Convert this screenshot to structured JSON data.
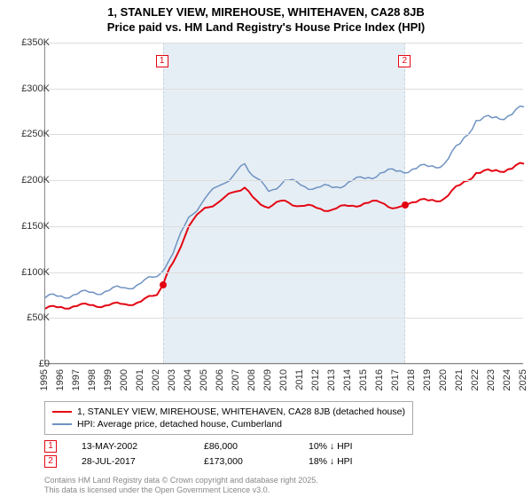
{
  "title_line1": "1, STANLEY VIEW, MIREHOUSE, WHITEHAVEN, CA28 8JB",
  "title_line2": "Price paid vs. HM Land Registry's House Price Index (HPI)",
  "chart": {
    "type": "line",
    "background_color": "#ffffff",
    "shade_color": "#e6eef5",
    "grid_color": "#dddddd",
    "axis_color": "#888888",
    "x_start_year": 1995,
    "x_end_year": 2025,
    "x_ticks": [
      1995,
      1996,
      1997,
      1998,
      1999,
      2000,
      2001,
      2002,
      2003,
      2004,
      2005,
      2006,
      2007,
      2008,
      2009,
      2010,
      2011,
      2012,
      2013,
      2014,
      2015,
      2016,
      2017,
      2018,
      2019,
      2020,
      2021,
      2022,
      2023,
      2024,
      2025
    ],
    "y_min": 0,
    "y_max": 350000,
    "y_ticks": [
      {
        "v": 0,
        "label": "£0"
      },
      {
        "v": 50000,
        "label": "£50K"
      },
      {
        "v": 100000,
        "label": "£100K"
      },
      {
        "v": 150000,
        "label": "£150K"
      },
      {
        "v": 200000,
        "label": "£200K"
      },
      {
        "v": 250000,
        "label": "£250K"
      },
      {
        "v": 300000,
        "label": "£300K"
      },
      {
        "v": 350000,
        "label": "£350K"
      }
    ],
    "shade_from_year": 2002.37,
    "shade_to_year": 2017.57,
    "series": [
      {
        "name": "1, STANLEY VIEW, MIREHOUSE, WHITEHAVEN, CA28 8JB (detached house)",
        "color": "#e30613",
        "width": 2,
        "data": [
          [
            1995,
            60000
          ],
          [
            1996,
            62000
          ],
          [
            1997,
            63000
          ],
          [
            1998,
            64000
          ],
          [
            1999,
            64000
          ],
          [
            2000,
            65000
          ],
          [
            2001,
            68000
          ],
          [
            2002,
            75000
          ],
          [
            2002.37,
            86000
          ],
          [
            2003,
            110000
          ],
          [
            2004,
            150000
          ],
          [
            2005,
            170000
          ],
          [
            2006,
            178000
          ],
          [
            2007,
            188000
          ],
          [
            2007.5,
            192000
          ],
          [
            2008,
            182000
          ],
          [
            2009,
            170000
          ],
          [
            2010,
            178000
          ],
          [
            2011,
            172000
          ],
          [
            2012,
            170000
          ],
          [
            2013,
            168000
          ],
          [
            2014,
            172000
          ],
          [
            2015,
            175000
          ],
          [
            2016,
            176000
          ],
          [
            2017,
            170000
          ],
          [
            2017.57,
            173000
          ],
          [
            2018,
            176000
          ],
          [
            2019,
            178000
          ],
          [
            2020,
            180000
          ],
          [
            2021,
            195000
          ],
          [
            2022,
            208000
          ],
          [
            2023,
            210000
          ],
          [
            2024,
            212000
          ],
          [
            2025,
            218000
          ]
        ]
      },
      {
        "name": "HPI: Average price, detached house, Cumberland",
        "color": "#6f93c2",
        "width": 1.5,
        "data": [
          [
            1995,
            72000
          ],
          [
            1996,
            74000
          ],
          [
            1997,
            76000
          ],
          [
            1998,
            78000
          ],
          [
            1999,
            80000
          ],
          [
            2000,
            83000
          ],
          [
            2001,
            88000
          ],
          [
            2002,
            95000
          ],
          [
            2003,
            120000
          ],
          [
            2004,
            160000
          ],
          [
            2005,
            180000
          ],
          [
            2006,
            195000
          ],
          [
            2007,
            210000
          ],
          [
            2007.5,
            218000
          ],
          [
            2008,
            205000
          ],
          [
            2009,
            188000
          ],
          [
            2010,
            200000
          ],
          [
            2011,
            195000
          ],
          [
            2012,
            192000
          ],
          [
            2013,
            192000
          ],
          [
            2014,
            198000
          ],
          [
            2015,
            202000
          ],
          [
            2016,
            208000
          ],
          [
            2017,
            210000
          ],
          [
            2018,
            212000
          ],
          [
            2019,
            215000
          ],
          [
            2020,
            218000
          ],
          [
            2021,
            240000
          ],
          [
            2022,
            265000
          ],
          [
            2023,
            268000
          ],
          [
            2024,
            270000
          ],
          [
            2025,
            280000
          ]
        ]
      }
    ],
    "markers": [
      {
        "num": "1",
        "year": 2002.37,
        "color": "#e30613"
      },
      {
        "num": "2",
        "year": 2017.57,
        "color": "#e30613"
      }
    ],
    "sale_points": [
      {
        "year": 2002.37,
        "value": 86000,
        "color": "#e30613"
      },
      {
        "year": 2017.57,
        "value": 173000,
        "color": "#e30613"
      }
    ]
  },
  "legend": [
    {
      "color": "#e30613",
      "width": 2,
      "label": "1, STANLEY VIEW, MIREHOUSE, WHITEHAVEN, CA28 8JB (detached house)"
    },
    {
      "color": "#6f93c2",
      "width": 1.5,
      "label": "HPI: Average price, detached house, Cumberland"
    }
  ],
  "events": [
    {
      "num": "1",
      "color": "#e30613",
      "date": "13-MAY-2002",
      "price": "£86,000",
      "delta": "10% ↓ HPI"
    },
    {
      "num": "2",
      "color": "#e30613",
      "date": "28-JUL-2017",
      "price": "£173,000",
      "delta": "18% ↓ HPI"
    }
  ],
  "footnote_line1": "Contains HM Land Registry data © Crown copyright and database right 2025.",
  "footnote_line2": "This data is licensed under the Open Government Licence v3.0."
}
